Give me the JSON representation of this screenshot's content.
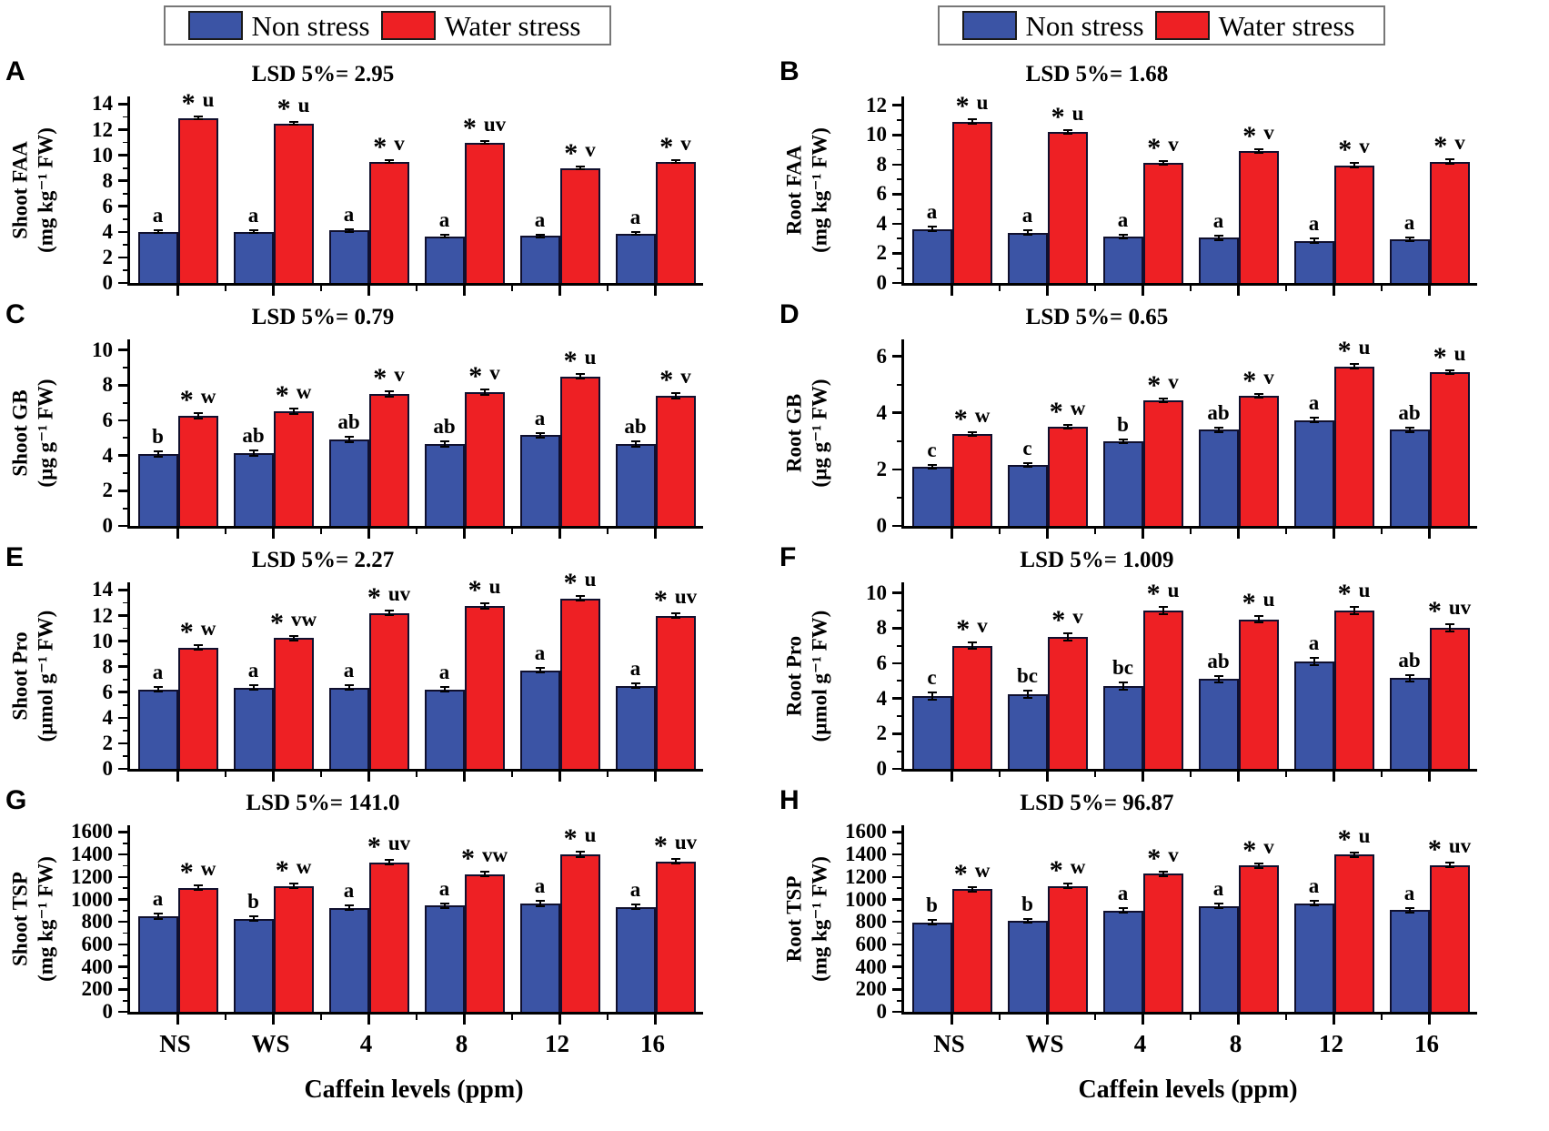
{
  "legend": {
    "non_stress": "Non stress",
    "water_stress": "Water stress"
  },
  "colors": {
    "non_stress": "#3B54A5",
    "water_stress": "#EE2024",
    "bar_border": "#10102e",
    "axis": "#000000"
  },
  "x_axis": {
    "categories": [
      "NS",
      "WS",
      "4",
      "8",
      "12",
      "16"
    ],
    "title": "Caffein levels (ppm)"
  },
  "chart_data": [
    {
      "panel": "A",
      "type": "bar",
      "lsd": "LSD 5%= 2.95",
      "ylabel": "Shoot FAA",
      "yunit": "(mg kg⁻¹ FW)",
      "ylim": [
        0,
        14
      ],
      "ytick_step": 2,
      "err": 0.18,
      "categories": [
        "NS",
        "WS",
        "4",
        "8",
        "12",
        "16"
      ],
      "series": [
        {
          "name": "Non stress",
          "values": [
            4.0,
            4.0,
            4.1,
            3.65,
            3.7,
            3.85
          ],
          "letters": [
            "a",
            "a",
            "a",
            "a",
            "a",
            "a"
          ],
          "starred": [
            false,
            false,
            false,
            false,
            false,
            false
          ]
        },
        {
          "name": "Water stress",
          "values": [
            12.9,
            12.5,
            9.5,
            11.0,
            9.0,
            9.5
          ],
          "letters": [
            "u",
            "u",
            "v",
            "uv",
            "v",
            "v"
          ],
          "starred": [
            true,
            true,
            true,
            true,
            true,
            true
          ]
        }
      ]
    },
    {
      "panel": "B",
      "type": "bar",
      "lsd": "LSD 5%= 1.68",
      "ylabel": "Root FAA",
      "yunit": "(mg kg⁻¹ FW)",
      "ylim": [
        0,
        12
      ],
      "ytick_step": 2,
      "err": 0.2,
      "categories": [
        "NS",
        "WS",
        "4",
        "8",
        "12",
        "16"
      ],
      "series": [
        {
          "name": "Non stress",
          "values": [
            3.65,
            3.4,
            3.15,
            3.05,
            2.85,
            2.95
          ],
          "letters": [
            "a",
            "a",
            "a",
            "a",
            "a",
            "a"
          ],
          "starred": [
            false,
            false,
            false,
            false,
            false,
            false
          ]
        },
        {
          "name": "Water stress",
          "values": [
            10.9,
            10.2,
            8.1,
            8.9,
            7.95,
            8.2
          ],
          "letters": [
            "u",
            "u",
            "v",
            "v",
            "v",
            "v"
          ],
          "starred": [
            true,
            true,
            true,
            true,
            true,
            true
          ]
        }
      ]
    },
    {
      "panel": "C",
      "type": "bar",
      "lsd": "LSD 5%= 0.79",
      "ylabel": "Shoot GB",
      "yunit": "(µg g⁻¹ FW)",
      "ylim": [
        0,
        10
      ],
      "ytick_step": 2,
      "err": 0.2,
      "categories": [
        "NS",
        "WS",
        "4",
        "8",
        "12",
        "16"
      ],
      "series": [
        {
          "name": "Non stress",
          "values": [
            4.1,
            4.15,
            4.9,
            4.65,
            5.15,
            4.65
          ],
          "letters": [
            "b",
            "ab",
            "ab",
            "ab",
            "a",
            "ab"
          ],
          "starred": [
            false,
            false,
            false,
            false,
            false,
            false
          ]
        },
        {
          "name": "Water stress",
          "values": [
            6.25,
            6.5,
            7.5,
            7.6,
            8.5,
            7.4
          ],
          "letters": [
            "w",
            "w",
            "v",
            "v",
            "u",
            "v"
          ],
          "starred": [
            true,
            true,
            true,
            true,
            true,
            true
          ]
        }
      ]
    },
    {
      "panel": "D",
      "type": "bar",
      "lsd": "LSD 5%= 0.65",
      "ylabel": "Root GB",
      "yunit": "(µg g⁻¹ FW)",
      "ylim": [
        0,
        6
      ],
      "ytick_step": 2,
      "err": 0.1,
      "categories": [
        "NS",
        "WS",
        "4",
        "8",
        "12",
        "16"
      ],
      "series": [
        {
          "name": "Non stress",
          "values": [
            2.1,
            2.15,
            3.0,
            3.4,
            3.75,
            3.4
          ],
          "letters": [
            "c",
            "c",
            "b",
            "ab",
            "a",
            "ab"
          ],
          "starred": [
            false,
            false,
            false,
            false,
            false,
            false
          ]
        },
        {
          "name": "Water stress",
          "values": [
            3.25,
            3.5,
            4.45,
            4.6,
            5.65,
            5.45
          ],
          "letters": [
            "w",
            "w",
            "v",
            "v",
            "u",
            "u"
          ],
          "starred": [
            true,
            true,
            true,
            true,
            true,
            true
          ]
        }
      ]
    },
    {
      "panel": "E",
      "type": "bar",
      "lsd": "LSD 5%= 2.27",
      "ylabel": "Shoot Pro",
      "yunit": "(µmol g⁻¹ FW)",
      "ylim": [
        0,
        14
      ],
      "ytick_step": 2,
      "err": 0.25,
      "categories": [
        "NS",
        "WS",
        "4",
        "8",
        "12",
        "16"
      ],
      "series": [
        {
          "name": "Non stress",
          "values": [
            6.2,
            6.35,
            6.35,
            6.2,
            7.7,
            6.5
          ],
          "letters": [
            "a",
            "a",
            "a",
            "a",
            "a",
            "a"
          ],
          "starred": [
            false,
            false,
            false,
            false,
            false,
            false
          ]
        },
        {
          "name": "Water stress",
          "values": [
            9.5,
            10.25,
            12.2,
            12.75,
            13.35,
            12.0
          ],
          "letters": [
            "w",
            "vw",
            "uv",
            "u",
            "u",
            "uv"
          ],
          "starred": [
            true,
            true,
            true,
            true,
            true,
            true
          ]
        }
      ]
    },
    {
      "panel": "F",
      "type": "bar",
      "lsd": "LSD 5%= 1.009",
      "ylabel": "Root Pro",
      "yunit": "(µmol g⁻¹ FW)",
      "ylim": [
        0,
        10
      ],
      "ytick_step": 2,
      "err": 0.25,
      "categories": [
        "NS",
        "WS",
        "4",
        "8",
        "12",
        "16"
      ],
      "series": [
        {
          "name": "Non stress",
          "values": [
            4.15,
            4.25,
            4.7,
            5.1,
            6.1,
            5.15
          ],
          "letters": [
            "c",
            "bc",
            "bc",
            "ab",
            "a",
            "ab"
          ],
          "starred": [
            false,
            false,
            false,
            false,
            false,
            false
          ]
        },
        {
          "name": "Water stress",
          "values": [
            7.0,
            7.5,
            9.0,
            8.5,
            9.0,
            8.0
          ],
          "letters": [
            "v",
            "v",
            "u",
            "u",
            "u",
            "uv"
          ],
          "starred": [
            true,
            true,
            true,
            true,
            true,
            true
          ]
        }
      ]
    },
    {
      "panel": "G",
      "type": "bar",
      "lsd": "LSD 5%= 141.0",
      "ylabel": "Shoot TSP",
      "yunit": "(mg kg⁻¹ FW)",
      "ylim": [
        0,
        1600
      ],
      "ytick_step": 200,
      "err": 30,
      "categories": [
        "NS",
        "WS",
        "4",
        "8",
        "12",
        "16"
      ],
      "series": [
        {
          "name": "Non stress",
          "values": [
            850,
            830,
            925,
            945,
            965,
            935
          ],
          "letters": [
            "a",
            "b",
            "a",
            "a",
            "a",
            "a"
          ],
          "starred": [
            false,
            false,
            false,
            false,
            false,
            false
          ]
        },
        {
          "name": "Water stress",
          "values": [
            1105,
            1120,
            1330,
            1225,
            1400,
            1340
          ],
          "letters": [
            "w",
            "w",
            "uv",
            "vw",
            "u",
            "uv"
          ],
          "starred": [
            true,
            true,
            true,
            true,
            true,
            true
          ]
        }
      ]
    },
    {
      "panel": "H",
      "type": "bar",
      "lsd": "LSD 5%= 96.87",
      "ylabel": "Root TSP",
      "yunit": "(mg kg⁻¹ FW)",
      "ylim": [
        0,
        1600
      ],
      "ytick_step": 200,
      "err": 28,
      "categories": [
        "NS",
        "WS",
        "4",
        "8",
        "12",
        "16"
      ],
      "series": [
        {
          "name": "Non stress",
          "values": [
            795,
            810,
            900,
            940,
            965,
            905
          ],
          "letters": [
            "b",
            "b",
            "a",
            "a",
            "a",
            "a"
          ],
          "starred": [
            false,
            false,
            false,
            false,
            false,
            false
          ]
        },
        {
          "name": "Water stress",
          "values": [
            1090,
            1120,
            1230,
            1300,
            1400,
            1305
          ],
          "letters": [
            "w",
            "w",
            "v",
            "v",
            "u",
            "uv"
          ],
          "starred": [
            true,
            true,
            true,
            true,
            true,
            true
          ]
        }
      ]
    }
  ]
}
